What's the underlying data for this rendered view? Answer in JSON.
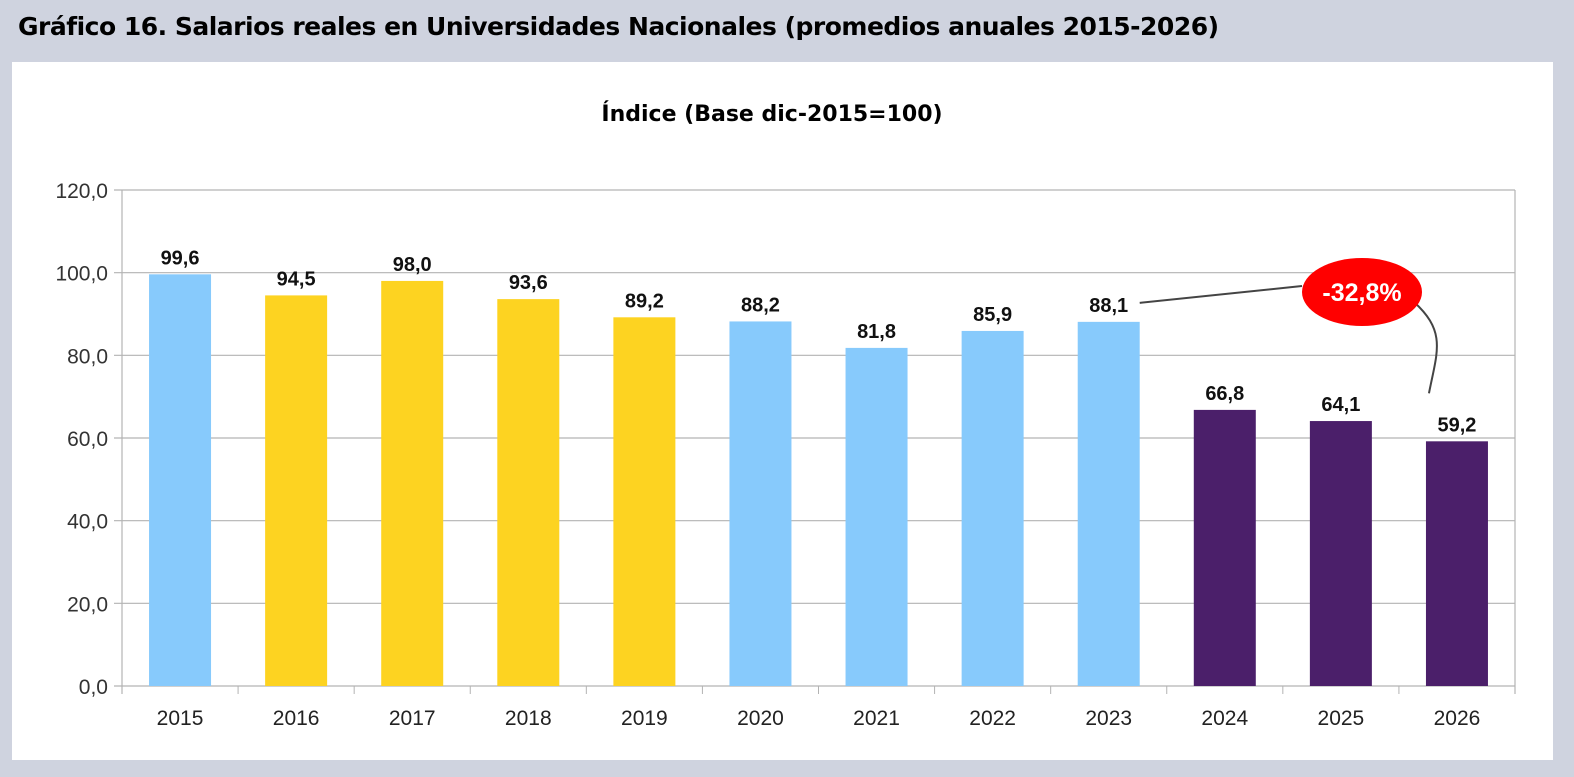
{
  "header": {
    "title": "Gráfico 16.  Salarios reales en Universidades Nacionales (promedios anuales 2015-2026)"
  },
  "chart_data": {
    "type": "bar",
    "title": "Índice (Base dic-2015=100)",
    "xlabel": "",
    "ylabel": "",
    "ylim": [
      0,
      120
    ],
    "yticks": [
      0,
      20,
      40,
      60,
      80,
      100,
      120
    ],
    "ytick_labels": [
      "0,0",
      "20,0",
      "40,0",
      "60,0",
      "80,0",
      "100,0",
      "120,0"
    ],
    "grid": true,
    "categories": [
      "2015",
      "2016",
      "2017",
      "2018",
      "2019",
      "2020",
      "2021",
      "2022",
      "2023",
      "2024",
      "2025",
      "2026"
    ],
    "values": [
      99.6,
      94.5,
      98.0,
      93.6,
      89.2,
      88.2,
      81.8,
      85.9,
      88.1,
      66.8,
      64.1,
      59.2
    ],
    "value_labels": [
      "99,6",
      "94,5",
      "98,0",
      "93,6",
      "89,2",
      "88,2",
      "81,8",
      "85,9",
      "88,1",
      "66,8",
      "64,1",
      "59,2"
    ],
    "bar_colors": [
      "#87cafc",
      "#fdd321",
      "#fdd321",
      "#fdd321",
      "#fdd321",
      "#87cafc",
      "#87cafc",
      "#87cafc",
      "#87cafc",
      "#4b1f6a",
      "#4b1f6a",
      "#4b1f6a"
    ],
    "annotation": {
      "text": "-32,8%",
      "from": "2023",
      "to": "2026",
      "color": "#ff0000"
    }
  }
}
